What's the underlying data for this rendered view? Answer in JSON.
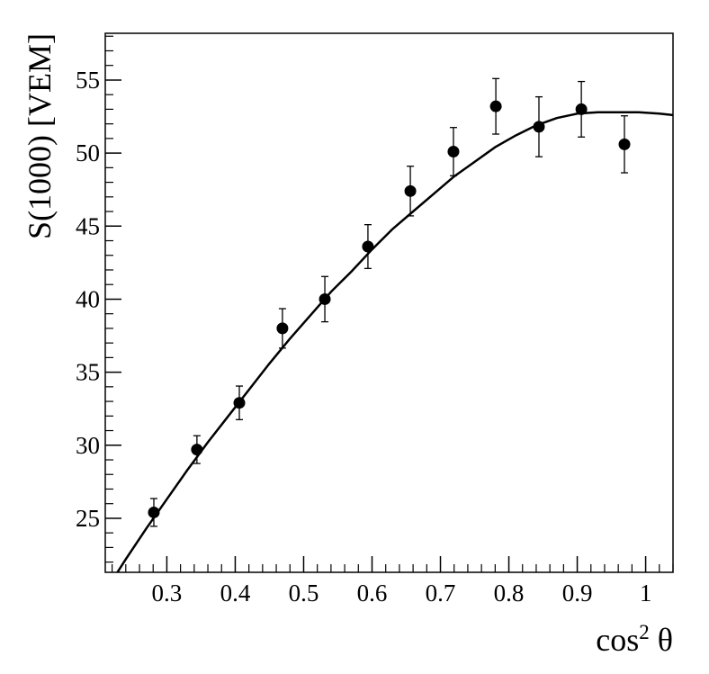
{
  "chart_data": {
    "type": "scatter",
    "xlabel": {
      "base": "cos",
      "sup": "2",
      "var": "θ"
    },
    "ylabel": "S(1000) [VEM]",
    "xlim": [
      0.21,
      1.04
    ],
    "ylim": [
      21.3,
      58.2
    ],
    "x_ticks": [
      0.3,
      0.4,
      0.5,
      0.6,
      0.7,
      0.8,
      0.9,
      1
    ],
    "x_tick_labels": [
      "0.3",
      "0.4",
      "0.5",
      "0.6",
      "0.7",
      "0.8",
      "0.9",
      "1"
    ],
    "y_ticks": [
      25,
      30,
      35,
      40,
      45,
      50,
      55
    ],
    "y_tick_labels": [
      "25",
      "30",
      "35",
      "40",
      "45",
      "50",
      "55"
    ],
    "grid": false,
    "legend": false,
    "series": [
      {
        "kind": "points_with_errors",
        "color": "#000000",
        "x": [
          0.281,
          0.344,
          0.406,
          0.469,
          0.531,
          0.594,
          0.656,
          0.719,
          0.781,
          0.844,
          0.906,
          0.969
        ],
        "y": [
          25.4,
          29.7,
          32.9,
          38.0,
          40.0,
          43.6,
          47.4,
          50.1,
          53.2,
          51.8,
          53.0,
          50.6
        ],
        "y_err": [
          0.95,
          0.95,
          1.15,
          1.35,
          1.55,
          1.5,
          1.7,
          1.65,
          1.9,
          2.05,
          1.9,
          1.95
        ]
      },
      {
        "kind": "fit_curve",
        "color": "#000000",
        "x": [
          0.21,
          0.24,
          0.27,
          0.3,
          0.33,
          0.36,
          0.39,
          0.42,
          0.45,
          0.48,
          0.51,
          0.54,
          0.57,
          0.6,
          0.63,
          0.66,
          0.69,
          0.72,
          0.75,
          0.78,
          0.81,
          0.84,
          0.87,
          0.9,
          0.93,
          0.96,
          0.99,
          1.02,
          1.04
        ],
        "y": [
          20.0,
          22.2,
          24.3,
          26.3,
          28.3,
          30.2,
          32.0,
          33.8,
          35.6,
          37.3,
          38.9,
          40.5,
          41.9,
          43.4,
          44.8,
          46.0,
          47.2,
          48.4,
          49.4,
          50.4,
          51.2,
          51.9,
          52.4,
          52.7,
          52.8,
          52.8,
          52.8,
          52.7,
          52.6
        ]
      }
    ]
  }
}
